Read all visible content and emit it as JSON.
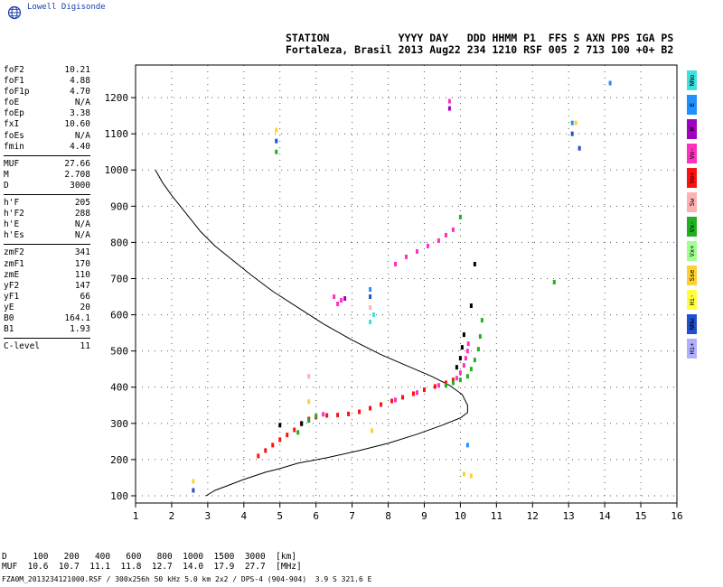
{
  "logo": {
    "text": "Lowell Digisonde",
    "icon": "globe-icon"
  },
  "header": {
    "line1": "STATION           YYYY DAY   DDD HHMM P1  FFS S AXN PPS IGA PS",
    "line2": "Fortaleza, Brasil 2013 Aug22 234 1210 RSF 005 2 713 100 +0+ B2"
  },
  "params": [
    [
      [
        "foF2",
        "10.21"
      ],
      [
        "foF1",
        "4.88"
      ],
      [
        "foF1p",
        "4.70"
      ],
      [
        "foE",
        "N/A"
      ],
      [
        "foEp",
        "3.38"
      ],
      [
        "fxI",
        "10.60"
      ],
      [
        "foEs",
        "N/A"
      ],
      [
        "fmin",
        "4.40"
      ]
    ],
    [
      [
        "MUF",
        "27.66"
      ],
      [
        "M",
        "2.708"
      ],
      [
        "D",
        "3000"
      ]
    ],
    [
      [
        "h'F",
        "205"
      ],
      [
        "h'F2",
        "288"
      ],
      [
        "h'E",
        "N/A"
      ],
      [
        "h'Es",
        "N/A"
      ]
    ],
    [
      [
        "zmF2",
        "341"
      ],
      [
        "zmF1",
        "170"
      ],
      [
        "zmE",
        "110"
      ],
      [
        "yF2",
        "147"
      ],
      [
        "yF1",
        "66"
      ],
      [
        "yE",
        "20"
      ],
      [
        "B0",
        "164.1"
      ],
      [
        "B1",
        "1.93"
      ]
    ],
    [
      [
        "C-level",
        "11"
      ]
    ]
  ],
  "legend": [
    {
      "label": "NNo",
      "color": "#40e0e0"
    },
    {
      "label": "E",
      "color": "#1e90ff"
    },
    {
      "label": "W",
      "color": "#a000c0"
    },
    {
      "label": "Vo-",
      "color": "#ff30c0"
    },
    {
      "label": "Vo+",
      "color": "#ff1010"
    },
    {
      "label": "Sw",
      "color": "#ffb0b0"
    },
    {
      "label": "Vx-",
      "color": "#20b020"
    },
    {
      "label": "Vx+",
      "color": "#a0ff90"
    },
    {
      "label": "Sse",
      "color": "#ffd030"
    },
    {
      "label": "Hi-",
      "color": "#ffff40"
    },
    {
      "label": "NNw",
      "color": "#2050d0"
    },
    {
      "label": "Hi+",
      "color": "#b0b0ff"
    }
  ],
  "footer": {
    "line1": "D     100   200   400   600   800  1000  1500  3000  [km]",
    "line2": "MUF  10.6  10.7  11.1  11.8  12.7  14.0  17.9  27.7  [MHz]",
    "file": "FZA0M_2013234121000.RSF / 300x256h 50 kHz 5.0 km 2x2 / DPS-4 (904-904)  3.9 S 321.6 E"
  },
  "chart_data": {
    "type": "scatter",
    "xlabel": "",
    "ylabel": "",
    "xlim": [
      1,
      16
    ],
    "ylim": [
      80,
      1290
    ],
    "xticks": [
      1,
      2,
      3,
      4,
      5,
      6,
      7,
      8,
      9,
      10,
      11,
      12,
      13,
      14,
      15,
      16
    ],
    "yticks": [
      100,
      200,
      300,
      400,
      500,
      600,
      700,
      800,
      900,
      1000,
      1100,
      1200
    ],
    "grid": true,
    "profile": {
      "name": "",
      "points": [
        [
          2.95,
          100
        ],
        [
          3.2,
          115
        ],
        [
          3.6,
          130
        ],
        [
          4.0,
          145
        ],
        [
          4.6,
          165
        ],
        [
          5.0,
          175
        ],
        [
          5.5,
          190
        ],
        [
          6.3,
          205
        ],
        [
          7.2,
          225
        ],
        [
          8.0,
          245
        ],
        [
          8.8,
          270
        ],
        [
          9.5,
          295
        ],
        [
          10.0,
          315
        ],
        [
          10.2,
          330
        ],
        [
          10.2,
          350
        ],
        [
          10.05,
          380
        ],
        [
          9.7,
          405
        ],
        [
          9.2,
          430
        ],
        [
          8.5,
          460
        ],
        [
          7.8,
          490
        ],
        [
          7.0,
          530
        ],
        [
          6.2,
          575
        ],
        [
          5.5,
          620
        ],
        [
          4.8,
          665
        ],
        [
          4.2,
          710
        ],
        [
          3.7,
          750
        ],
        [
          3.2,
          790
        ],
        [
          2.8,
          830
        ],
        [
          2.4,
          880
        ],
        [
          2.0,
          930
        ],
        [
          1.75,
          965
        ],
        [
          1.55,
          1000
        ]
      ]
    },
    "traces": [
      {
        "name": "Vo+",
        "color": "#ff1010",
        "points": [
          [
            4.4,
            210
          ],
          [
            4.6,
            225
          ],
          [
            4.8,
            240
          ],
          [
            5.0,
            255
          ],
          [
            5.2,
            268
          ],
          [
            5.4,
            282
          ],
          [
            5.6,
            298
          ],
          [
            5.8,
            312
          ],
          [
            6.0,
            318
          ],
          [
            6.3,
            322
          ],
          [
            6.6,
            323
          ],
          [
            6.9,
            326
          ],
          [
            7.2,
            332
          ],
          [
            7.5,
            342
          ],
          [
            7.8,
            352
          ],
          [
            8.1,
            362
          ],
          [
            8.4,
            372
          ],
          [
            8.7,
            382
          ],
          [
            9.0,
            393
          ],
          [
            9.3,
            402
          ],
          [
            9.6,
            412
          ],
          [
            9.8,
            420
          ]
        ]
      },
      {
        "name": "Vo-",
        "color": "#ff30c0",
        "points": [
          [
            9.9,
            425
          ],
          [
            10.0,
            440
          ],
          [
            10.1,
            460
          ],
          [
            10.15,
            480
          ],
          [
            10.2,
            500
          ],
          [
            10.22,
            520
          ],
          [
            6.2,
            325
          ],
          [
            8.2,
            365
          ],
          [
            8.8,
            385
          ],
          [
            9.4,
            405
          ],
          [
            8.2,
            740
          ],
          [
            8.5,
            760
          ],
          [
            8.8,
            775
          ],
          [
            9.1,
            790
          ],
          [
            9.4,
            805
          ],
          [
            9.6,
            820
          ],
          [
            9.8,
            835
          ],
          [
            6.5,
            650
          ],
          [
            6.7,
            640
          ],
          [
            6.6,
            630
          ],
          [
            9.7,
            1190
          ]
        ]
      },
      {
        "name": "Vx-",
        "color": "#20b020",
        "points": [
          [
            5.5,
            275
          ],
          [
            5.8,
            308
          ],
          [
            6.0,
            320
          ],
          [
            9.6,
            405
          ],
          [
            9.8,
            412
          ],
          [
            10.0,
            420
          ],
          [
            10.2,
            430
          ],
          [
            10.3,
            450
          ],
          [
            10.4,
            475
          ],
          [
            10.5,
            505
          ],
          [
            10.55,
            540
          ],
          [
            10.6,
            585
          ],
          [
            10.0,
            870
          ],
          [
            12.6,
            690
          ],
          [
            4.9,
            1050
          ]
        ]
      },
      {
        "name": "NNw",
        "color": "#2050d0",
        "points": [
          [
            2.6,
            115
          ],
          [
            4.9,
            1080
          ],
          [
            13.3,
            1060
          ],
          [
            13.1,
            1100
          ],
          [
            7.5,
            650
          ]
        ]
      },
      {
        "name": "Sse",
        "color": "#ffd030",
        "points": [
          [
            2.6,
            140
          ],
          [
            7.55,
            280
          ],
          [
            10.3,
            155
          ],
          [
            10.1,
            160
          ],
          [
            5.8,
            360
          ],
          [
            13.2,
            1130
          ],
          [
            4.9,
            1110
          ]
        ]
      },
      {
        "name": "E",
        "color": "#1e90ff",
        "points": [
          [
            7.5,
            670
          ],
          [
            13.1,
            1130
          ],
          [
            14.15,
            1240
          ],
          [
            10.2,
            240
          ]
        ]
      },
      {
        "name": "NNo",
        "color": "#40e0e0",
        "points": [
          [
            7.6,
            600
          ],
          [
            7.5,
            580
          ]
        ]
      },
      {
        "name": "W",
        "color": "#a000c0",
        "points": [
          [
            9.7,
            1170
          ],
          [
            6.8,
            645
          ]
        ]
      },
      {
        "name": "Sw",
        "color": "#ffb0b0",
        "points": [
          [
            5.8,
            430
          ],
          [
            7.5,
            620
          ]
        ]
      },
      {
        "name": "O-marks",
        "color": "#000000",
        "points": [
          [
            9.9,
            455
          ],
          [
            10.0,
            480
          ],
          [
            10.05,
            510
          ],
          [
            10.1,
            545
          ],
          [
            10.3,
            625
          ],
          [
            10.4,
            740
          ],
          [
            5.0,
            295
          ],
          [
            5.6,
            300
          ]
        ]
      }
    ]
  }
}
